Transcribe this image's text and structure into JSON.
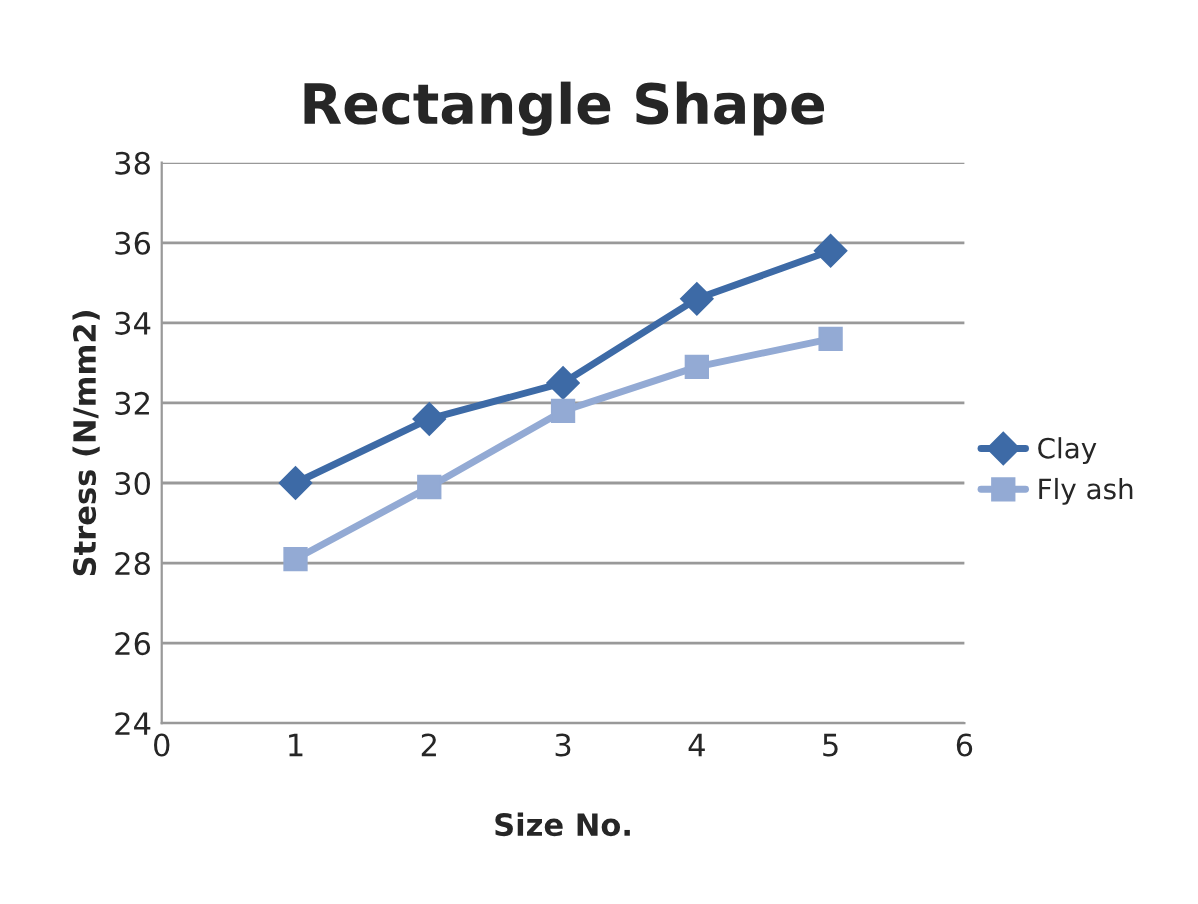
{
  "chart_data": {
    "type": "line",
    "title": "Rectangle Shape",
    "xlabel": "Size No.",
    "ylabel": "Stress (N/mm2)",
    "x": [
      1,
      2,
      3,
      4,
      5
    ],
    "series": [
      {
        "name": "Clay",
        "color": "#3d6aa6",
        "marker": "diamond",
        "values": [
          30.0,
          31.6,
          32.5,
          34.6,
          35.8
        ]
      },
      {
        "name": "Fly ash",
        "color": "#93aad4",
        "marker": "square",
        "values": [
          28.1,
          29.9,
          31.8,
          32.9,
          33.6
        ]
      }
    ],
    "xlim": [
      0,
      6
    ],
    "xticks": [
      0,
      1,
      2,
      3,
      4,
      5,
      6
    ],
    "ylim": [
      24,
      38
    ],
    "yticks": [
      24,
      26,
      28,
      30,
      32,
      34,
      36,
      38
    ],
    "grid": "y",
    "legend": "right"
  }
}
